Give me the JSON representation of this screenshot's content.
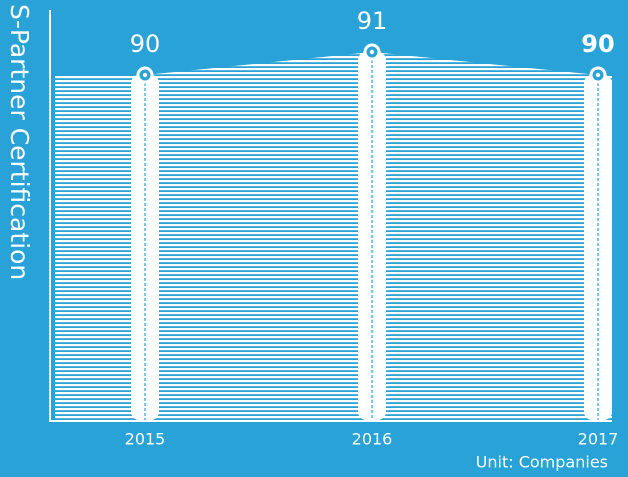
{
  "chart_data": {
    "type": "area",
    "title": "S-Partner Certification",
    "unit": "Unit: Companies",
    "categories": [
      "2015",
      "2016",
      "2017"
    ],
    "values": [
      90,
      91,
      90
    ],
    "ylim": [
      75,
      92
    ],
    "color": "#ffffff",
    "background": "#29a2d7"
  }
}
